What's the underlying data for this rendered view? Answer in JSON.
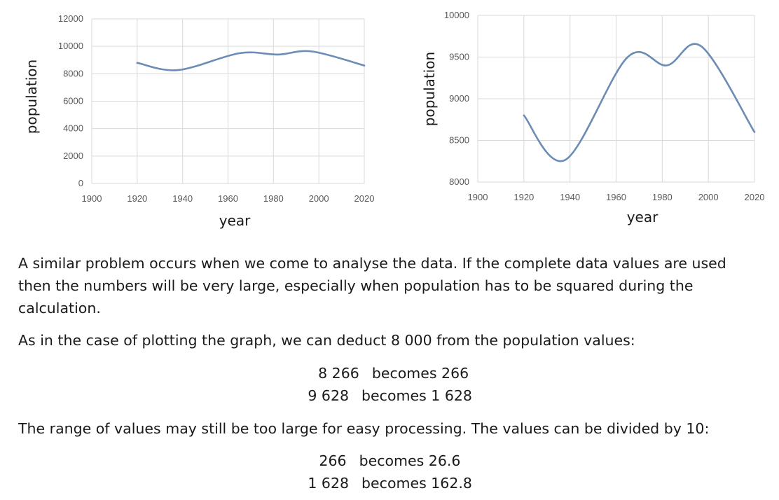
{
  "chart_data": [
    {
      "type": "line",
      "title": "",
      "xlabel": "year",
      "ylabel": "population",
      "xlim": [
        1900,
        2020
      ],
      "ylim": [
        0,
        12000
      ],
      "x_ticks": [
        "1900",
        "1920",
        "1940",
        "1960",
        "1980",
        "2000",
        "2020"
      ],
      "y_ticks": [
        "0",
        "2000",
        "4000",
        "6000",
        "8000",
        "10000",
        "12000"
      ],
      "grid": true,
      "series": [
        {
          "x": [
            1920,
            1938,
            1965,
            1982,
            1997,
            2020
          ],
          "values": [
            8800,
            8266,
            9500,
            9400,
            9628,
            8600
          ]
        }
      ]
    },
    {
      "type": "line",
      "title": "",
      "xlabel": "year",
      "ylabel": "population",
      "xlim": [
        1900,
        2020
      ],
      "ylim": [
        8000,
        10000
      ],
      "x_ticks": [
        "1900",
        "1920",
        "1940",
        "1960",
        "1980",
        "2000",
        "2020"
      ],
      "y_ticks": [
        "8000",
        "8500",
        "9000",
        "9500",
        "10000"
      ],
      "grid": true,
      "series": [
        {
          "x": [
            1920,
            1938,
            1965,
            1982,
            1997,
            2020
          ],
          "values": [
            8800,
            8266,
            9500,
            9400,
            9628,
            8600
          ]
        }
      ]
    }
  ],
  "color_line": "#6b8cb5",
  "color_grid": "#d9d9d9",
  "text": {
    "para1_line1": "A similar problem occurs when we come to analyse the data.  If the complete data values are used",
    "para1_line2": "then the numbers will be very large, especially when population has to be squared during the",
    "para1_line3": "calculation.",
    "para2": "As in the case of plotting the graph, we can deduct 8 000 from the population values:",
    "ex1_a_left": "8 266",
    "ex1_a_right": "becomes 266",
    "ex1_b_left": "9 628",
    "ex1_b_right": "becomes 1 628",
    "para3": "The range of values may still be too large for easy processing.  The values can be divided by 10:",
    "ex2_a_left": "266",
    "ex2_a_right": "becomes 26.6",
    "ex2_b_left": "1 628",
    "ex2_b_right": "becomes 162.8"
  }
}
